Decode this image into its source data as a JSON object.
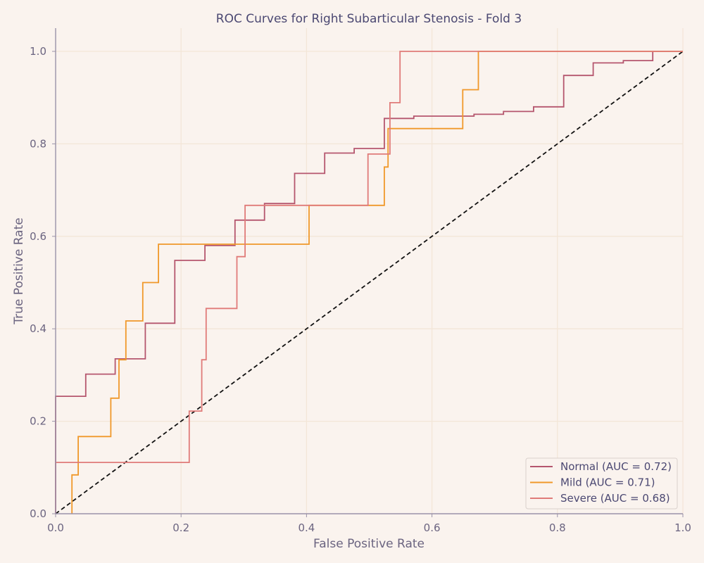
{
  "chart_data": {
    "type": "line",
    "title": "ROC Curves for Right Subarticular Stenosis - Fold 3",
    "xlabel": "False Positive Rate",
    "ylabel": "True Positive Rate",
    "xlim": [
      0,
      1
    ],
    "ylim": [
      0,
      1.05
    ],
    "xticks": [
      "0.0",
      "0.2",
      "0.4",
      "0.6",
      "0.8",
      "1.0"
    ],
    "yticks": [
      "0.0",
      "0.2",
      "0.4",
      "0.6",
      "0.8",
      "1.0"
    ],
    "grid": true,
    "legend_position": "lower-right",
    "reference_line": {
      "x": [
        0,
        1
      ],
      "y": [
        0,
        1
      ],
      "style": "dashed",
      "color": "#111111"
    },
    "series": [
      {
        "name": "Normal (AUC = 0.72)",
        "color": "#b5566e",
        "x": [
          0,
          0,
          0.048,
          0.048,
          0.095,
          0.095,
          0.143,
          0.143,
          0.19,
          0.19,
          0.238,
          0.238,
          0.286,
          0.286,
          0.333,
          0.333,
          0.381,
          0.381,
          0.429,
          0.429,
          0.476,
          0.476,
          0.524,
          0.524,
          0.571,
          0.571,
          0.667,
          0.667,
          0.714,
          0.714,
          0.762,
          0.762,
          0.81,
          0.81,
          0.857,
          0.857,
          0.905,
          0.905,
          0.952,
          0.952,
          1.0
        ],
        "y": [
          0,
          0.254,
          0.254,
          0.302,
          0.302,
          0.335,
          0.335,
          0.412,
          0.412,
          0.548,
          0.548,
          0.58,
          0.58,
          0.635,
          0.635,
          0.671,
          0.671,
          0.736,
          0.736,
          0.78,
          0.78,
          0.79,
          0.79,
          0.855,
          0.855,
          0.86,
          0.86,
          0.864,
          0.864,
          0.87,
          0.87,
          0.88,
          0.88,
          0.948,
          0.948,
          0.975,
          0.975,
          0.98,
          0.98,
          1.0,
          1.0
        ]
      },
      {
        "name": "Mild (AUC = 0.71)",
        "color": "#f0982a",
        "x": [
          0.026,
          0.026,
          0.036,
          0.036,
          0.088,
          0.088,
          0.101,
          0.101,
          0.112,
          0.112,
          0.139,
          0.139,
          0.164,
          0.164,
          0.404,
          0.404,
          0.524,
          0.524,
          0.53,
          0.53,
          0.649,
          0.649,
          0.674,
          0.674,
          1.0
        ],
        "y": [
          0,
          0.084,
          0.084,
          0.167,
          0.167,
          0.25,
          0.25,
          0.333,
          0.333,
          0.417,
          0.417,
          0.5,
          0.5,
          0.583,
          0.583,
          0.667,
          0.667,
          0.75,
          0.75,
          0.833,
          0.833,
          0.917,
          0.917,
          1.0,
          1.0
        ]
      },
      {
        "name": "Severe (AUC = 0.68)",
        "color": "#e07b79",
        "x": [
          0,
          0.213,
          0.213,
          0.233,
          0.233,
          0.24,
          0.24,
          0.289,
          0.289,
          0.302,
          0.302,
          0.498,
          0.498,
          0.533,
          0.533,
          0.549,
          0.549,
          1.0
        ],
        "y": [
          0.111,
          0.111,
          0.222,
          0.222,
          0.333,
          0.333,
          0.444,
          0.444,
          0.556,
          0.556,
          0.667,
          0.667,
          0.778,
          0.778,
          0.889,
          0.889,
          1.0,
          1.0
        ]
      }
    ]
  }
}
